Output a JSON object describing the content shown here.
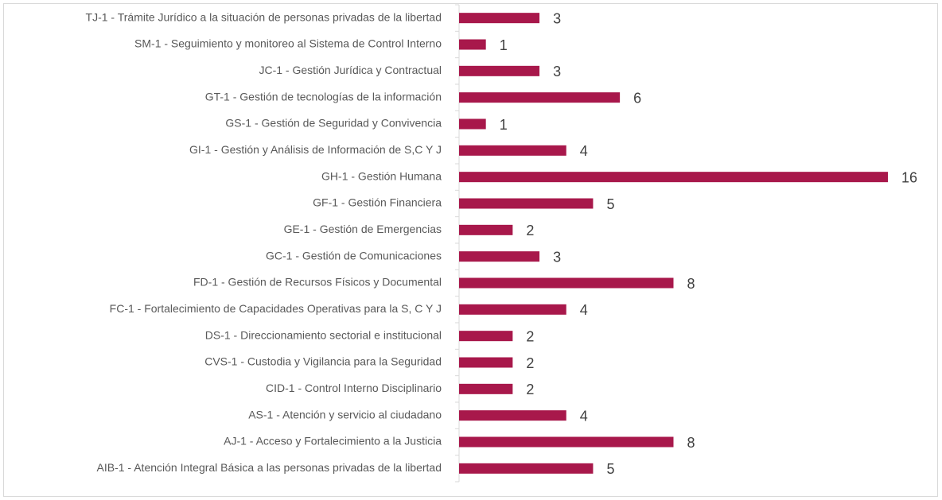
{
  "chart_data": {
    "type": "barh",
    "categories": [
      "TJ-1 - Trámite Jurídico a la situación de personas privadas de la libertad",
      "SM-1 - Seguimiento y monitoreo al Sistema de Control Interno",
      "JC-1 - Gestión Jurídica y Contractual",
      "GT-1 - Gestión de tecnologías de la información",
      "GS-1 - Gestión de Seguridad y Convivencia",
      "GI-1 - Gestión y Análisis de  Información de S,C Y J",
      "GH-1 - Gestión Humana",
      "GF-1 - Gestión Financiera",
      "GE-1 - Gestión de Emergencias",
      "GC-1 - Gestión de Comunicaciones",
      "FD-1 - Gestión de Recursos Físicos y Documental",
      "FC-1 - Fortalecimiento de Capacidades Operativas para la S, C Y J",
      "DS-1 - Direccionamiento sectorial e institucional",
      "CVS-1 - Custodia y Vigilancia para la Seguridad",
      "CID-1 - Control Interno Disciplinario",
      "AS-1 - Atención y servicio al ciudadano",
      "AJ-1 - Acceso y Fortalecimiento a la Justicia",
      "AIB-1 - Atención Integral Básica a las personas privadas de la libertad"
    ],
    "values": [
      3,
      1,
      3,
      6,
      1,
      4,
      16,
      5,
      2,
      3,
      8,
      4,
      2,
      2,
      2,
      4,
      8,
      5
    ],
    "color": "#a8184b",
    "xlim": [
      0,
      16
    ]
  }
}
